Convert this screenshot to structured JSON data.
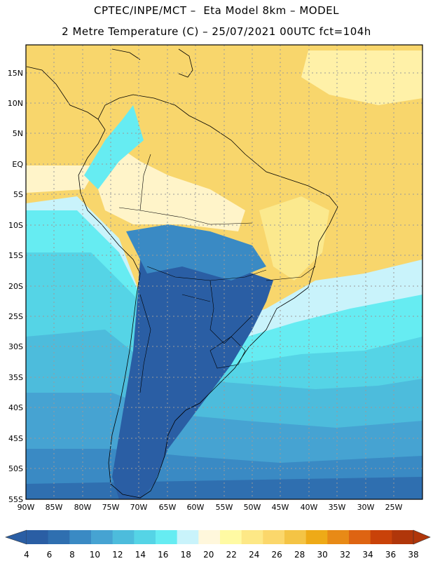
{
  "header": {
    "title_line1": "CPTEC/INPE/MCT –  Eta Model 8km – MODEL",
    "title_line2": "2 Metre Temperature (C) – 25/07/2021 00UTC fct=104h"
  },
  "map": {
    "lat_labels": [
      "15N",
      "10N",
      "5N",
      "EQ",
      "5S",
      "10S",
      "15S",
      "20S",
      "25S",
      "30S",
      "35S",
      "40S",
      "45S",
      "50S",
      "55S"
    ],
    "lon_labels": [
      "90W",
      "85W",
      "80W",
      "75W",
      "70W",
      "65W",
      "60W",
      "55W",
      "50W",
      "45W",
      "40W",
      "35W",
      "30W",
      "25W"
    ],
    "grid": "dotted"
  },
  "colorbar": {
    "labels": [
      "4",
      "6",
      "8",
      "10",
      "12",
      "14",
      "16",
      "18",
      "20",
      "22",
      "24",
      "26",
      "28",
      "30",
      "32",
      "34",
      "36",
      "38"
    ],
    "colors": [
      "#2a5ea4",
      "#2f6fb0",
      "#3a8ac4",
      "#46a3d2",
      "#4dbcdc",
      "#55d4e6",
      "#66ecf2",
      "#c9f3fb",
      "#fff7dc",
      "#fffaa3",
      "#fde886",
      "#fbd76b",
      "#f4c445",
      "#eeaa17",
      "#e88a16",
      "#de6412",
      "#c94209",
      "#b0360a"
    ]
  }
}
